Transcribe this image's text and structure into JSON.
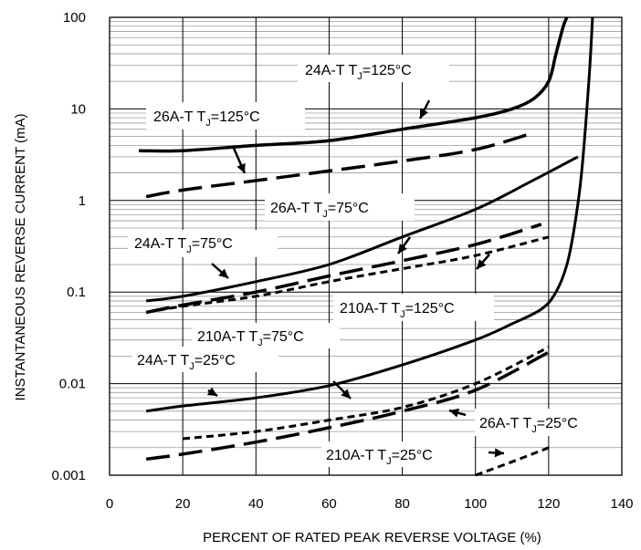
{
  "chart_data": {
    "type": "line",
    "title": "",
    "xlabel": "PERCENT OF RATED PEAK REVERSE VOLTAGE (%)",
    "ylabel": "INSTANTANEOUS REVERSE CURRENT (mA)",
    "xlim": [
      0,
      140
    ],
    "ylim": [
      0.001,
      100
    ],
    "yscale": "log",
    "grid": true,
    "x_ticks": [
      "0",
      "20",
      "40",
      "60",
      "80",
      "100",
      "120",
      "140"
    ],
    "y_ticks": [
      "0.001",
      "0.01",
      "0.1",
      "1",
      "10",
      "100"
    ],
    "y_tick_values": [
      0.001,
      0.01,
      0.1,
      1,
      10,
      100
    ],
    "series": [
      {
        "name": "24A-T TJ=125°C",
        "style": "solid",
        "width": 3.5,
        "x": [
          8,
          20,
          40,
          60,
          80,
          100,
          110,
          116,
          120,
          122,
          124,
          125
        ],
        "y": [
          3.5,
          3.5,
          4.0,
          4.5,
          6.0,
          8.0,
          10,
          13,
          20,
          40,
          80,
          100
        ]
      },
      {
        "name": "26A-T TJ=125°C",
        "style": "long-dash",
        "width": 3.5,
        "x": [
          10,
          20,
          40,
          60,
          80,
          100,
          116
        ],
        "y": [
          1.1,
          1.3,
          1.65,
          2.1,
          2.7,
          3.6,
          5.5
        ]
      },
      {
        "name": "24A-T TJ=75°C",
        "style": "solid",
        "width": 3,
        "x": [
          10,
          20,
          40,
          60,
          80,
          100,
          115,
          128
        ],
        "y": [
          0.08,
          0.09,
          0.13,
          0.2,
          0.4,
          0.8,
          1.6,
          3.0
        ]
      },
      {
        "name": "26A-T TJ=75°C",
        "style": "long-dash",
        "width": 3.5,
        "x": [
          10,
          20,
          40,
          60,
          80,
          100,
          118
        ],
        "y": [
          0.06,
          0.072,
          0.1,
          0.15,
          0.22,
          0.33,
          0.55
        ]
      },
      {
        "name": "210A-T TJ=125°C",
        "style": "short-dash",
        "width": 3,
        "x": [
          10,
          20,
          40,
          60,
          80,
          100,
          120
        ],
        "y": [
          0.06,
          0.07,
          0.09,
          0.13,
          0.18,
          0.25,
          0.4
        ]
      },
      {
        "name": "210A-T TJ=75°C",
        "style": "solid",
        "width": 3,
        "x": [
          10,
          20,
          40,
          60,
          80,
          100,
          110,
          118,
          122,
          125,
          127,
          129,
          131,
          132
        ],
        "y": [
          0.005,
          0.0057,
          0.007,
          0.0095,
          0.016,
          0.03,
          0.045,
          0.065,
          0.1,
          0.2,
          0.5,
          2,
          20,
          100
        ]
      },
      {
        "name": "24A-T TJ=25°C",
        "style": "short-dash",
        "width": 3,
        "x": [
          20,
          40,
          60,
          80,
          100,
          120
        ],
        "y": [
          0.0025,
          0.003,
          0.004,
          0.0055,
          0.01,
          0.025
        ]
      },
      {
        "name": "26A-T TJ=25°C",
        "style": "long-dash",
        "width": 3.5,
        "x": [
          10,
          20,
          40,
          60,
          80,
          100,
          120
        ],
        "y": [
          0.0015,
          0.0017,
          0.0023,
          0.0033,
          0.005,
          0.0085,
          0.022
        ]
      },
      {
        "name": "210A-T TJ=25°C",
        "style": "short-dash",
        "width": 3,
        "x": [
          100,
          110,
          120
        ],
        "y": [
          0.001,
          0.0014,
          0.002
        ]
      }
    ],
    "annotations": [
      {
        "id": "ann-24a-125",
        "base": "24A-T  T",
        "sub": "J",
        "tail": "=125°C"
      },
      {
        "id": "ann-26a-125",
        "base": "26A-T  T",
        "sub": "J",
        "tail": "=125°C"
      },
      {
        "id": "ann-26a-75",
        "base": "26A-T  T",
        "sub": "J",
        "tail": "=75°C"
      },
      {
        "id": "ann-24a-75",
        "base": "24A-T  T",
        "sub": "J",
        "tail": "=75°C"
      },
      {
        "id": "ann-210a-125",
        "base": "210A-T  T",
        "sub": "J",
        "tail": "=125°C"
      },
      {
        "id": "ann-210a-75",
        "base": "210A-T  T",
        "sub": "J",
        "tail": "=75°C"
      },
      {
        "id": "ann-24a-25",
        "base": "24A-T  T",
        "sub": "J",
        "tail": "=25°C"
      },
      {
        "id": "ann-26a-25",
        "base": "26A-T  T",
        "sub": "J",
        "tail": "=25°C"
      },
      {
        "id": "ann-210a-25",
        "base": "210A-T  T",
        "sub": "J",
        "tail": "=25°C"
      }
    ]
  }
}
